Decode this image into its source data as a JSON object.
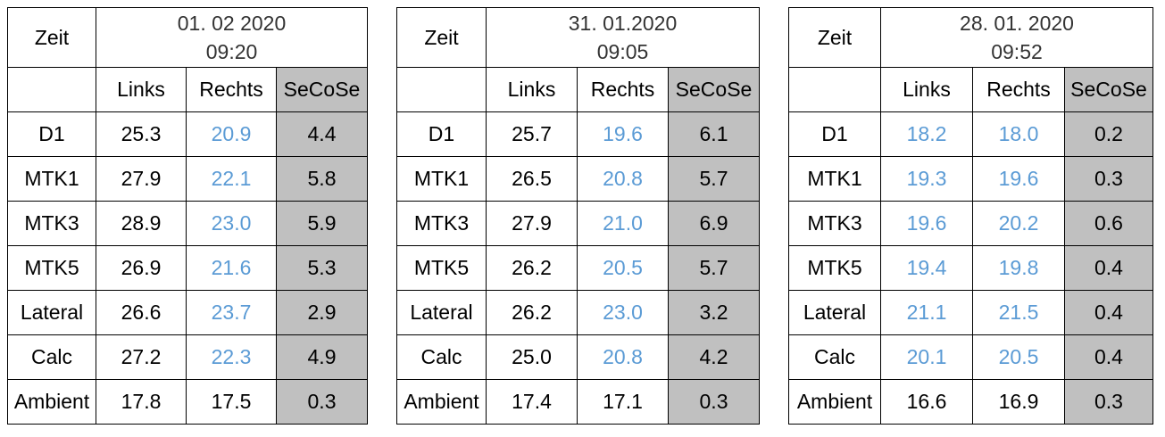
{
  "tables": [
    {
      "zeit_label": "Zeit",
      "date": "01. 02 2020",
      "time": "09:20",
      "columns": [
        "Links",
        "Rechts",
        "SeCoSe"
      ],
      "rows": [
        {
          "label": "D1",
          "links": "25.3",
          "rechts": "20.9",
          "secose": "4.4",
          "links_blue": false,
          "rechts_blue": true
        },
        {
          "label": "MTK1",
          "links": "27.9",
          "rechts": "22.1",
          "secose": "5.8",
          "links_blue": false,
          "rechts_blue": true
        },
        {
          "label": "MTK3",
          "links": "28.9",
          "rechts": "23.0",
          "secose": "5.9",
          "links_blue": false,
          "rechts_blue": true
        },
        {
          "label": "MTK5",
          "links": "26.9",
          "rechts": "21.6",
          "secose": "5.3",
          "links_blue": false,
          "rechts_blue": true
        },
        {
          "label": "Lateral",
          "links": "26.6",
          "rechts": "23.7",
          "secose": "2.9",
          "links_blue": false,
          "rechts_blue": true
        },
        {
          "label": "Calc",
          "links": "27.2",
          "rechts": "22.3",
          "secose": "4.9",
          "links_blue": false,
          "rechts_blue": true
        },
        {
          "label": "Ambient",
          "links": "17.8",
          "rechts": "17.5",
          "secose": "0.3",
          "links_blue": false,
          "rechts_blue": false
        }
      ]
    },
    {
      "zeit_label": "Zeit",
      "date": "31. 01.2020",
      "time": "09:05",
      "columns": [
        "Links",
        "Rechts",
        "SeCoSe"
      ],
      "rows": [
        {
          "label": "D1",
          "links": "25.7",
          "rechts": "19.6",
          "secose": "6.1",
          "links_blue": false,
          "rechts_blue": true
        },
        {
          "label": "MTK1",
          "links": "26.5",
          "rechts": "20.8",
          "secose": "5.7",
          "links_blue": false,
          "rechts_blue": true
        },
        {
          "label": "MTK3",
          "links": "27.9",
          "rechts": "21.0",
          "secose": "6.9",
          "links_blue": false,
          "rechts_blue": true
        },
        {
          "label": "MTK5",
          "links": "26.2",
          "rechts": "20.5",
          "secose": "5.7",
          "links_blue": false,
          "rechts_blue": true
        },
        {
          "label": "Lateral",
          "links": "26.2",
          "rechts": "23.0",
          "secose": "3.2",
          "links_blue": false,
          "rechts_blue": true
        },
        {
          "label": "Calc",
          "links": "25.0",
          "rechts": "20.8",
          "secose": "4.2",
          "links_blue": false,
          "rechts_blue": true
        },
        {
          "label": "Ambient",
          "links": "17.4",
          "rechts": "17.1",
          "secose": "0.3",
          "links_blue": false,
          "rechts_blue": false
        }
      ]
    },
    {
      "zeit_label": "Zeit",
      "date": "28. 01. 2020",
      "time": "09:52",
      "columns": [
        "Links",
        "Rechts",
        "SeCoSe"
      ],
      "rows": [
        {
          "label": "D1",
          "links": "18.2",
          "rechts": "18.0",
          "secose": "0.2",
          "links_blue": true,
          "rechts_blue": true
        },
        {
          "label": "MTK1",
          "links": "19.3",
          "rechts": "19.6",
          "secose": "0.3",
          "links_blue": true,
          "rechts_blue": true
        },
        {
          "label": "MTK3",
          "links": "19.6",
          "rechts": "20.2",
          "secose": "0.6",
          "links_blue": true,
          "rechts_blue": true
        },
        {
          "label": "MTK5",
          "links": "19.4",
          "rechts": "19.8",
          "secose": "0.4",
          "links_blue": true,
          "rechts_blue": true
        },
        {
          "label": "Lateral",
          "links": "21.1",
          "rechts": "21.5",
          "secose": "0.4",
          "links_blue": true,
          "rechts_blue": true
        },
        {
          "label": "Calc",
          "links": "20.1",
          "rechts": "20.5",
          "secose": "0.4",
          "links_blue": true,
          "rechts_blue": true
        },
        {
          "label": "Ambient",
          "links": "16.6",
          "rechts": "16.9",
          "secose": "0.3",
          "links_blue": false,
          "rechts_blue": false
        }
      ]
    }
  ],
  "colors": {
    "blue_text": "#5b9bd5",
    "secose_fill": "#c0c0c0",
    "border": "#000000"
  }
}
